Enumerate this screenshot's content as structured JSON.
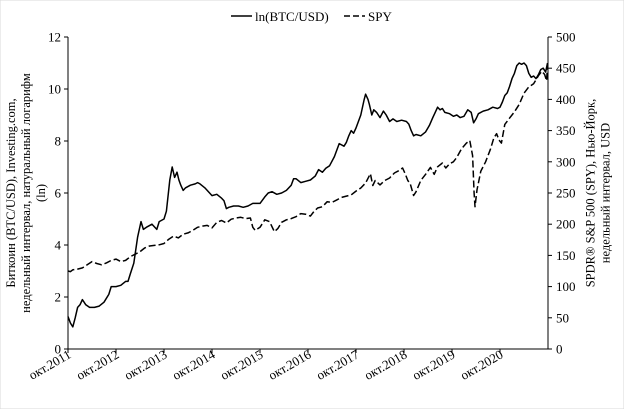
{
  "chart_data": {
    "type": "line",
    "legend": {
      "placement": "top-center",
      "entries": [
        "ln(BTC/USD)",
        "SPY"
      ]
    },
    "grid": {
      "major_horizontal": false,
      "major_vertical": false
    },
    "x": {
      "ticks": [
        "окт.2011",
        "окт.2012",
        "окт.2013",
        "окт.2014",
        "окт.2015",
        "окт.2016",
        "окт.2017",
        "окт.2018",
        "окт.2019",
        "окт.2020"
      ],
      "tick_years": [
        2011.75,
        2012.75,
        2013.75,
        2014.75,
        2015.75,
        2016.75,
        2017.75,
        2018.75,
        2019.75,
        2020.75
      ],
      "range": [
        2011.75,
        2021.75
      ]
    },
    "y_left": {
      "label": "Биткоин (BTC/USD), Investing.com, недельный интервал, натуральный логарифм (ln)",
      "range": [
        0,
        12
      ],
      "ticks": [
        "0",
        "2",
        "4",
        "6",
        "8",
        "10",
        "12"
      ],
      "tick_values": [
        0,
        2,
        4,
        6,
        8,
        10,
        12
      ]
    },
    "y_right": {
      "label": "SPDR® S&P 500 (SPY), Нью-Йорк, недельный интервал, USD",
      "range": [
        0,
        500
      ],
      "ticks": [
        "0",
        "50",
        "100",
        "150",
        "200",
        "250",
        "300",
        "350",
        "400",
        "450",
        "500"
      ],
      "tick_values": [
        0,
        50,
        100,
        150,
        200,
        250,
        300,
        350,
        400,
        450,
        500
      ]
    },
    "series": [
      {
        "name": "ln(BTC/USD)",
        "axis": "left",
        "style": "solid",
        "color": "#000000",
        "points": [
          [
            2011.75,
            1.25
          ],
          [
            2011.8,
            1.0
          ],
          [
            2011.85,
            0.85
          ],
          [
            2011.9,
            1.2
          ],
          [
            2011.95,
            1.6
          ],
          [
            2012.0,
            1.7
          ],
          [
            2012.05,
            1.9
          ],
          [
            2012.12,
            1.7
          ],
          [
            2012.2,
            1.6
          ],
          [
            2012.3,
            1.6
          ],
          [
            2012.4,
            1.65
          ],
          [
            2012.5,
            1.8
          ],
          [
            2012.6,
            2.1
          ],
          [
            2012.65,
            2.4
          ],
          [
            2012.75,
            2.4
          ],
          [
            2012.85,
            2.45
          ],
          [
            2012.95,
            2.6
          ],
          [
            2013.0,
            2.6
          ],
          [
            2013.05,
            2.9
          ],
          [
            2013.12,
            3.3
          ],
          [
            2013.2,
            4.3
          ],
          [
            2013.27,
            4.9
          ],
          [
            2013.32,
            4.6
          ],
          [
            2013.4,
            4.7
          ],
          [
            2013.5,
            4.8
          ],
          [
            2013.6,
            4.6
          ],
          [
            2013.65,
            4.9
          ],
          [
            2013.75,
            5.0
          ],
          [
            2013.8,
            5.3
          ],
          [
            2013.87,
            6.5
          ],
          [
            2013.92,
            7.0
          ],
          [
            2013.97,
            6.6
          ],
          [
            2014.02,
            6.8
          ],
          [
            2014.06,
            6.5
          ],
          [
            2014.1,
            6.3
          ],
          [
            2014.15,
            6.1
          ],
          [
            2014.2,
            6.2
          ],
          [
            2014.3,
            6.3
          ],
          [
            2014.4,
            6.35
          ],
          [
            2014.45,
            6.4
          ],
          [
            2014.5,
            6.35
          ],
          [
            2014.6,
            6.2
          ],
          [
            2014.7,
            6.0
          ],
          [
            2014.75,
            5.9
          ],
          [
            2014.85,
            5.95
          ],
          [
            2014.95,
            5.8
          ],
          [
            2015.0,
            5.7
          ],
          [
            2015.05,
            5.4
          ],
          [
            2015.1,
            5.45
          ],
          [
            2015.2,
            5.5
          ],
          [
            2015.3,
            5.5
          ],
          [
            2015.4,
            5.45
          ],
          [
            2015.5,
            5.5
          ],
          [
            2015.6,
            5.6
          ],
          [
            2015.75,
            5.6
          ],
          [
            2015.85,
            5.85
          ],
          [
            2015.92,
            6.0
          ],
          [
            2016.0,
            6.05
          ],
          [
            2016.1,
            5.95
          ],
          [
            2016.2,
            6.0
          ],
          [
            2016.3,
            6.1
          ],
          [
            2016.4,
            6.3
          ],
          [
            2016.45,
            6.55
          ],
          [
            2016.5,
            6.55
          ],
          [
            2016.6,
            6.4
          ],
          [
            2016.7,
            6.45
          ],
          [
            2016.8,
            6.5
          ],
          [
            2016.9,
            6.65
          ],
          [
            2016.97,
            6.9
          ],
          [
            2017.05,
            6.8
          ],
          [
            2017.12,
            6.95
          ],
          [
            2017.2,
            7.05
          ],
          [
            2017.3,
            7.4
          ],
          [
            2017.4,
            7.9
          ],
          [
            2017.5,
            7.8
          ],
          [
            2017.55,
            7.95
          ],
          [
            2017.6,
            8.2
          ],
          [
            2017.65,
            8.4
          ],
          [
            2017.7,
            8.3
          ],
          [
            2017.75,
            8.5
          ],
          [
            2017.8,
            8.75
          ],
          [
            2017.85,
            9.0
          ],
          [
            2017.92,
            9.6
          ],
          [
            2017.95,
            9.8
          ],
          [
            2018.0,
            9.6
          ],
          [
            2018.03,
            9.4
          ],
          [
            2018.08,
            9.0
          ],
          [
            2018.12,
            9.2
          ],
          [
            2018.18,
            9.1
          ],
          [
            2018.25,
            8.9
          ],
          [
            2018.32,
            9.15
          ],
          [
            2018.38,
            9.0
          ],
          [
            2018.45,
            8.75
          ],
          [
            2018.52,
            8.85
          ],
          [
            2018.6,
            8.75
          ],
          [
            2018.7,
            8.8
          ],
          [
            2018.8,
            8.75
          ],
          [
            2018.85,
            8.65
          ],
          [
            2018.9,
            8.4
          ],
          [
            2018.95,
            8.2
          ],
          [
            2019.0,
            8.25
          ],
          [
            2019.1,
            8.2
          ],
          [
            2019.2,
            8.35
          ],
          [
            2019.28,
            8.6
          ],
          [
            2019.35,
            8.9
          ],
          [
            2019.4,
            9.1
          ],
          [
            2019.45,
            9.3
          ],
          [
            2019.5,
            9.2
          ],
          [
            2019.55,
            9.25
          ],
          [
            2019.6,
            9.1
          ],
          [
            2019.7,
            9.05
          ],
          [
            2019.78,
            8.95
          ],
          [
            2019.85,
            9.0
          ],
          [
            2019.92,
            8.9
          ],
          [
            2020.0,
            8.95
          ],
          [
            2020.08,
            9.2
          ],
          [
            2020.15,
            9.1
          ],
          [
            2020.2,
            8.7
          ],
          [
            2020.25,
            8.85
          ],
          [
            2020.3,
            9.05
          ],
          [
            2020.4,
            9.15
          ],
          [
            2020.5,
            9.2
          ],
          [
            2020.6,
            9.3
          ],
          [
            2020.7,
            9.25
          ],
          [
            2020.75,
            9.3
          ],
          [
            2020.8,
            9.5
          ],
          [
            2020.85,
            9.75
          ],
          [
            2020.9,
            9.85
          ],
          [
            2020.95,
            10.1
          ],
          [
            2021.0,
            10.4
          ],
          [
            2021.05,
            10.6
          ],
          [
            2021.1,
            10.9
          ],
          [
            2021.15,
            11.0
          ],
          [
            2021.2,
            10.95
          ],
          [
            2021.25,
            11.0
          ],
          [
            2021.3,
            10.9
          ],
          [
            2021.35,
            10.6
          ],
          [
            2021.4,
            10.45
          ],
          [
            2021.45,
            10.5
          ],
          [
            2021.5,
            10.4
          ],
          [
            2021.55,
            10.55
          ],
          [
            2021.6,
            10.75
          ],
          [
            2021.65,
            10.8
          ],
          [
            2021.7,
            10.65
          ],
          [
            2021.74,
            11.0
          ]
        ]
      },
      {
        "name": "SPY",
        "axis": "right",
        "style": "dashed",
        "color": "#000000",
        "points": [
          [
            2011.75,
            125
          ],
          [
            2011.8,
            124
          ],
          [
            2011.85,
            127
          ],
          [
            2011.95,
            128
          ],
          [
            2012.05,
            130
          ],
          [
            2012.15,
            135
          ],
          [
            2012.25,
            140
          ],
          [
            2012.35,
            137
          ],
          [
            2012.45,
            135
          ],
          [
            2012.55,
            138
          ],
          [
            2012.65,
            142
          ],
          [
            2012.75,
            144
          ],
          [
            2012.85,
            140
          ],
          [
            2012.95,
            142
          ],
          [
            2013.05,
            148
          ],
          [
            2013.15,
            152
          ],
          [
            2013.25,
            156
          ],
          [
            2013.35,
            162
          ],
          [
            2013.45,
            165
          ],
          [
            2013.55,
            166
          ],
          [
            2013.65,
            167
          ],
          [
            2013.75,
            169
          ],
          [
            2013.85,
            176
          ],
          [
            2013.95,
            181
          ],
          [
            2014.05,
            178
          ],
          [
            2014.15,
            184
          ],
          [
            2014.25,
            186
          ],
          [
            2014.35,
            190
          ],
          [
            2014.45,
            195
          ],
          [
            2014.55,
            197
          ],
          [
            2014.65,
            198
          ],
          [
            2014.75,
            194
          ],
          [
            2014.85,
            203
          ],
          [
            2014.95,
            206
          ],
          [
            2015.05,
            202
          ],
          [
            2015.15,
            208
          ],
          [
            2015.25,
            210
          ],
          [
            2015.35,
            211
          ],
          [
            2015.45,
            209
          ],
          [
            2015.55,
            210
          ],
          [
            2015.6,
            195
          ],
          [
            2015.65,
            190
          ],
          [
            2015.75,
            195
          ],
          [
            2015.85,
            207
          ],
          [
            2015.95,
            204
          ],
          [
            2016.05,
            188
          ],
          [
            2016.12,
            193
          ],
          [
            2016.2,
            203
          ],
          [
            2016.3,
            207
          ],
          [
            2016.4,
            209
          ],
          [
            2016.5,
            212
          ],
          [
            2016.6,
            217
          ],
          [
            2016.7,
            216
          ],
          [
            2016.8,
            213
          ],
          [
            2016.87,
            220
          ],
          [
            2016.95,
            226
          ],
          [
            2017.05,
            228
          ],
          [
            2017.15,
            236
          ],
          [
            2017.25,
            235
          ],
          [
            2017.35,
            239
          ],
          [
            2017.45,
            243
          ],
          [
            2017.55,
            245
          ],
          [
            2017.65,
            247
          ],
          [
            2017.75,
            253
          ],
          [
            2017.85,
            258
          ],
          [
            2017.95,
            266
          ],
          [
            2018.05,
            281
          ],
          [
            2018.1,
            262
          ],
          [
            2018.15,
            270
          ],
          [
            2018.25,
            263
          ],
          [
            2018.35,
            270
          ],
          [
            2018.45,
            274
          ],
          [
            2018.55,
            282
          ],
          [
            2018.65,
            286
          ],
          [
            2018.72,
            290
          ],
          [
            2018.78,
            280
          ],
          [
            2018.83,
            270
          ],
          [
            2018.88,
            265
          ],
          [
            2018.95,
            246
          ],
          [
            2019.0,
            252
          ],
          [
            2019.1,
            270
          ],
          [
            2019.2,
            280
          ],
          [
            2019.3,
            291
          ],
          [
            2019.38,
            280
          ],
          [
            2019.45,
            292
          ],
          [
            2019.55,
            298
          ],
          [
            2019.62,
            290
          ],
          [
            2019.7,
            297
          ],
          [
            2019.78,
            300
          ],
          [
            2019.85,
            307
          ],
          [
            2019.95,
            321
          ],
          [
            2020.05,
            330
          ],
          [
            2020.12,
            334
          ],
          [
            2020.18,
            310
          ],
          [
            2020.21,
            250
          ],
          [
            2020.23,
            228
          ],
          [
            2020.27,
            255
          ],
          [
            2020.35,
            285
          ],
          [
            2020.45,
            300
          ],
          [
            2020.55,
            320
          ],
          [
            2020.62,
            338
          ],
          [
            2020.68,
            345
          ],
          [
            2020.73,
            335
          ],
          [
            2020.78,
            330
          ],
          [
            2020.85,
            360
          ],
          [
            2020.95,
            370
          ],
          [
            2021.05,
            380
          ],
          [
            2021.15,
            392
          ],
          [
            2021.25,
            410
          ],
          [
            2021.35,
            420
          ],
          [
            2021.45,
            425
          ],
          [
            2021.55,
            438
          ],
          [
            2021.62,
            445
          ],
          [
            2021.68,
            440
          ],
          [
            2021.72,
            430
          ],
          [
            2021.74,
            455
          ]
        ]
      }
    ]
  }
}
